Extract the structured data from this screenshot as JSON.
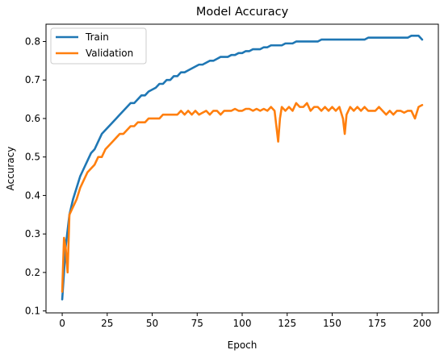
{
  "chart_data": {
    "type": "line",
    "title": "Model Accuracy",
    "xlabel": "Epoch",
    "ylabel": "Accuracy",
    "xlim": [
      -9,
      209
    ],
    "ylim": [
      0.095,
      0.845
    ],
    "xticks": [
      0,
      25,
      50,
      75,
      100,
      125,
      150,
      175,
      200
    ],
    "yticks": [
      0.1,
      0.2,
      0.3,
      0.4,
      0.5,
      0.6,
      0.7,
      0.8
    ],
    "grid": false,
    "legend_position": "top-left",
    "series": [
      {
        "name": "Train",
        "color": "#1f77b4",
        "x": [
          0,
          2,
          4,
          6,
          8,
          10,
          12,
          14,
          16,
          18,
          20,
          22,
          24,
          26,
          28,
          30,
          32,
          34,
          36,
          38,
          40,
          42,
          44,
          46,
          48,
          50,
          52,
          54,
          56,
          58,
          60,
          62,
          64,
          66,
          68,
          70,
          72,
          74,
          76,
          78,
          80,
          82,
          84,
          86,
          88,
          90,
          92,
          94,
          96,
          98,
          100,
          102,
          104,
          106,
          108,
          110,
          112,
          114,
          116,
          118,
          120,
          122,
          124,
          126,
          128,
          130,
          132,
          134,
          136,
          138,
          140,
          142,
          144,
          146,
          148,
          150,
          152,
          154,
          156,
          158,
          160,
          162,
          164,
          166,
          168,
          170,
          172,
          174,
          176,
          178,
          180,
          182,
          184,
          186,
          188,
          190,
          192,
          194,
          196,
          198,
          200
        ],
        "y": [
          0.13,
          0.27,
          0.35,
          0.39,
          0.42,
          0.45,
          0.47,
          0.49,
          0.51,
          0.52,
          0.54,
          0.56,
          0.57,
          0.58,
          0.59,
          0.6,
          0.61,
          0.62,
          0.63,
          0.64,
          0.64,
          0.65,
          0.66,
          0.66,
          0.67,
          0.675,
          0.68,
          0.69,
          0.69,
          0.7,
          0.7,
          0.71,
          0.71,
          0.72,
          0.72,
          0.725,
          0.73,
          0.735,
          0.74,
          0.74,
          0.745,
          0.75,
          0.75,
          0.755,
          0.76,
          0.76,
          0.76,
          0.765,
          0.765,
          0.77,
          0.77,
          0.775,
          0.775,
          0.78,
          0.78,
          0.78,
          0.785,
          0.785,
          0.79,
          0.79,
          0.79,
          0.79,
          0.795,
          0.795,
          0.795,
          0.8,
          0.8,
          0.8,
          0.8,
          0.8,
          0.8,
          0.8,
          0.805,
          0.805,
          0.805,
          0.805,
          0.805,
          0.805,
          0.805,
          0.805,
          0.805,
          0.805,
          0.805,
          0.805,
          0.805,
          0.81,
          0.81,
          0.81,
          0.81,
          0.81,
          0.81,
          0.81,
          0.81,
          0.81,
          0.81,
          0.81,
          0.81,
          0.815,
          0.815,
          0.815,
          0.805
        ]
      },
      {
        "name": "Validation",
        "color": "#ff7f0e",
        "x": [
          0,
          1,
          2,
          3,
          4,
          6,
          8,
          10,
          12,
          14,
          16,
          18,
          20,
          22,
          24,
          26,
          28,
          30,
          32,
          34,
          36,
          38,
          40,
          42,
          44,
          46,
          48,
          50,
          52,
          54,
          56,
          58,
          60,
          62,
          64,
          66,
          68,
          70,
          72,
          74,
          76,
          78,
          80,
          82,
          84,
          86,
          88,
          90,
          92,
          94,
          96,
          98,
          100,
          102,
          104,
          106,
          108,
          110,
          112,
          114,
          116,
          118,
          119,
          120,
          121,
          122,
          124,
          126,
          128,
          130,
          132,
          134,
          136,
          138,
          140,
          142,
          144,
          146,
          148,
          150,
          152,
          154,
          156,
          157,
          158,
          160,
          162,
          164,
          166,
          168,
          170,
          172,
          174,
          176,
          178,
          180,
          182,
          184,
          186,
          188,
          190,
          192,
          194,
          196,
          198,
          200
        ],
        "y": [
          0.15,
          0.29,
          0.26,
          0.2,
          0.35,
          0.37,
          0.39,
          0.42,
          0.44,
          0.46,
          0.47,
          0.48,
          0.5,
          0.5,
          0.52,
          0.53,
          0.54,
          0.55,
          0.56,
          0.56,
          0.57,
          0.58,
          0.58,
          0.59,
          0.59,
          0.59,
          0.6,
          0.6,
          0.6,
          0.6,
          0.61,
          0.61,
          0.61,
          0.61,
          0.61,
          0.62,
          0.61,
          0.62,
          0.61,
          0.62,
          0.61,
          0.615,
          0.62,
          0.61,
          0.62,
          0.62,
          0.61,
          0.62,
          0.62,
          0.62,
          0.625,
          0.62,
          0.62,
          0.625,
          0.625,
          0.62,
          0.625,
          0.62,
          0.625,
          0.62,
          0.63,
          0.62,
          0.58,
          0.54,
          0.6,
          0.63,
          0.62,
          0.63,
          0.62,
          0.64,
          0.63,
          0.63,
          0.64,
          0.62,
          0.63,
          0.63,
          0.62,
          0.63,
          0.62,
          0.63,
          0.62,
          0.63,
          0.6,
          0.56,
          0.61,
          0.63,
          0.62,
          0.63,
          0.62,
          0.63,
          0.62,
          0.62,
          0.62,
          0.63,
          0.62,
          0.61,
          0.62,
          0.61,
          0.62,
          0.62,
          0.615,
          0.62,
          0.62,
          0.6,
          0.63,
          0.635
        ]
      }
    ]
  }
}
